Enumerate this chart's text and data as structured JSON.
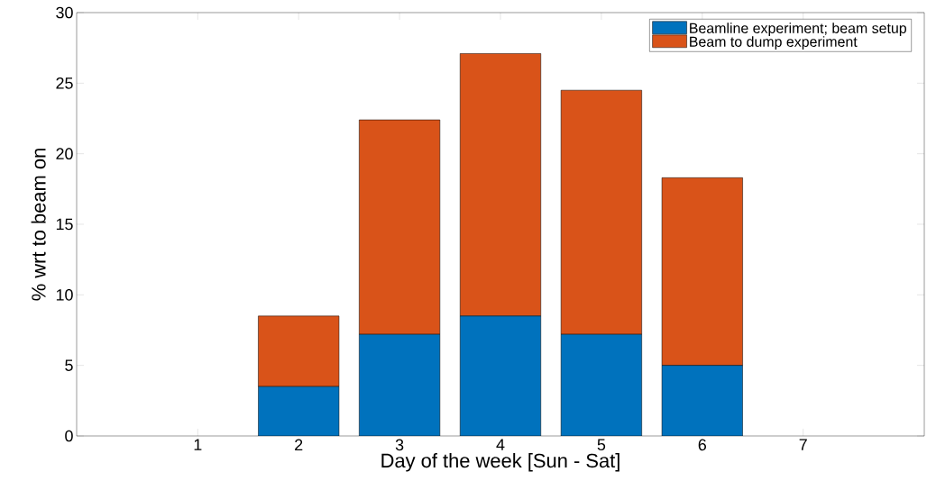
{
  "chart_data": {
    "type": "bar",
    "stacked": true,
    "xlabel": "Day of the week [Sun - Sat]",
    "ylabel": "% wrt to beam on",
    "x": [
      1,
      2,
      3,
      4,
      5,
      6,
      7
    ],
    "series": [
      {
        "name": "Beamline experiment; beam setup",
        "color": "#0072bd",
        "values": [
          0,
          3.5,
          7.2,
          8.5,
          7.2,
          5.0,
          0
        ]
      },
      {
        "name": "Beam to dump experiment",
        "color": "#d95319",
        "values": [
          0,
          5.0,
          15.2,
          18.6,
          17.3,
          13.3,
          0
        ]
      }
    ],
    "xlim": [
      -0.2,
      8.2
    ],
    "xticks": [
      1,
      2,
      3,
      4,
      5,
      6,
      7
    ],
    "ylim": [
      0,
      30
    ],
    "yticks": [
      0,
      5,
      10,
      15,
      20,
      25,
      30
    ],
    "legend": "top right"
  }
}
